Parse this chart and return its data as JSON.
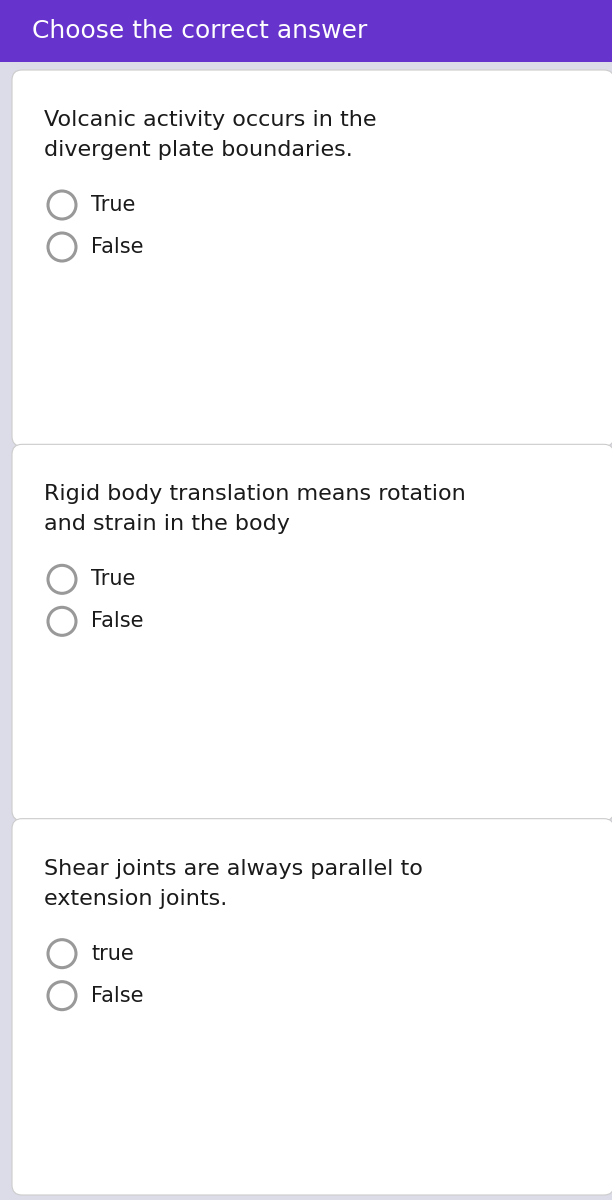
{
  "header_text": "Choose the correct answer",
  "header_bg": "#6633cc",
  "header_text_color": "#ffffff",
  "page_bg": "#dcdce8",
  "card_bg": "#ffffff",
  "questions": [
    {
      "question": "Volcanic activity occurs in the\ndivergent plate boundaries.",
      "options": [
        "True",
        "False"
      ]
    },
    {
      "question": "Rigid body translation means rotation\nand strain in the body",
      "options": [
        "True",
        "False"
      ]
    },
    {
      "question": "Shear joints are always parallel to\nextension joints.",
      "options": [
        "true",
        "False"
      ]
    }
  ],
  "question_fontsize": 16,
  "option_fontsize": 15,
  "text_color": "#1a1a1a",
  "circle_color": "#999999",
  "circle_linewidth": 2.2,
  "header_fontsize": 18
}
